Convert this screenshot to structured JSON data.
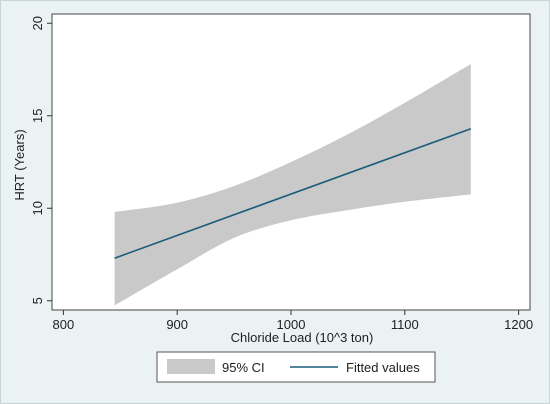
{
  "chart_data": {
    "type": "line",
    "xlabel": "Chloride Load (10^3 ton)",
    "ylabel": "HRT (Years)",
    "xlim": [
      790,
      1210
    ],
    "ylim": [
      4.5,
      20.5
    ],
    "xticks": [
      800,
      900,
      1000,
      1100,
      1200
    ],
    "yticks": [
      5,
      10,
      15,
      20
    ],
    "grid": false,
    "legend_placement": "bottom",
    "series": [
      {
        "name": "Fitted values",
        "kind": "line",
        "color": "#1b5b7a",
        "x": [
          845,
          1158
        ],
        "y": [
          7.3,
          14.3
        ]
      },
      {
        "name": "95% CI",
        "kind": "band",
        "color": "#c9c9c9",
        "x": [
          845,
          900,
          950,
          1000,
          1050,
          1100,
          1158
        ],
        "upper": [
          9.8,
          10.3,
          11.2,
          12.5,
          14.0,
          15.7,
          17.8
        ],
        "lower": [
          4.75,
          6.7,
          8.4,
          9.35,
          9.9,
          10.35,
          10.75
        ]
      }
    ]
  },
  "legend": {
    "ci_label": "95% CI",
    "fit_label": "Fitted values"
  },
  "colors": {
    "background": "#eaf2f3",
    "plot_area": "#ffffff",
    "ci_fill": "#c9c9c9",
    "fit_line": "#1b5b7a"
  }
}
